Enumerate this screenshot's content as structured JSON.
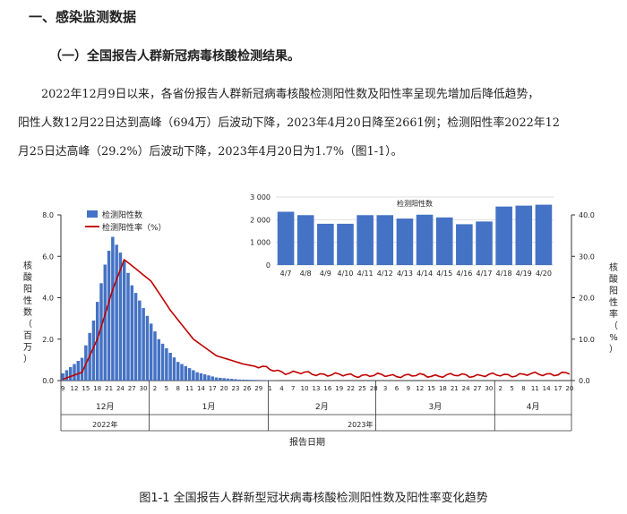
{
  "section": {
    "heading": "一、感染监测数据",
    "subheading": "（一）全国报告人群新冠病毒核酸检测结果。",
    "paragraph_lines": [
      "2022年12月9日以来，各省份报告人群新冠病毒核酸检测阳性数及阳性率呈现先增加后降低趋势，",
      "阳性人数12月22日达到高峰（694万）后波动下降，2023年4月20日降至2661例；检测阳性率2022年12",
      "月25日达高峰（29.2%）后波动下降，2023年4月20日为1.7%（图1-1）。"
    ]
  },
  "figure": {
    "caption": "图1-1   全国报告人群新型冠状病毒核酸检测阳性数及阳性率变化趋势",
    "legend": {
      "bar": "检测阳性数",
      "line": "检测阳性率（%）"
    },
    "left_axis_label": [
      "核",
      "酸",
      "阳",
      "性",
      "数",
      "（",
      "百",
      "万",
      "）"
    ],
    "right_axis_label": [
      "核",
      "酸",
      "阳",
      "性",
      "率",
      "（",
      "%",
      "）"
    ],
    "x_axis_title": "报告日期",
    "year_2022": "2022年",
    "year_2023": "2023年",
    "months": [
      "12月",
      "1月",
      "2月",
      "3月",
      "4月"
    ],
    "inset_title": "检测阳性数",
    "colors": {
      "bar": "#4472C4",
      "line": "#C00000"
    }
  },
  "chart_data": [
    {
      "type": "bar+line",
      "xlabel": "报告日期",
      "ylabel": "核酸阳性数（百万）",
      "y2label": "核酸阳性率（%）",
      "ylim": [
        0,
        8
      ],
      "y2lim": [
        0,
        40
      ],
      "yticks": [
        "0.0",
        "2.0",
        "4.0",
        "6.0",
        "8.0"
      ],
      "y2ticks": [
        "0.0",
        "10.0",
        "20.0",
        "30.0",
        "40.0"
      ],
      "x_start": "2022-12-09",
      "x_end": "2023-04-20",
      "x_tick_labels": [
        "9",
        "12",
        "15",
        "18",
        "21",
        "24",
        "27",
        "30",
        "2",
        "5",
        "8",
        "11",
        "14",
        "17",
        "20",
        "23",
        "26",
        "29",
        "1",
        "4",
        "7",
        "10",
        "13",
        "16",
        "19",
        "22",
        "25",
        "28",
        "3",
        "6",
        "9",
        "12",
        "15",
        "18",
        "21",
        "24",
        "27",
        "30",
        "2",
        "5",
        "8",
        "11",
        "14",
        "17",
        "20"
      ],
      "bar_key_points": [
        {
          "date": "2022-12-09",
          "value": 0.35
        },
        {
          "date": "2022-12-14",
          "value": 1.1
        },
        {
          "date": "2022-12-17",
          "value": 2.9
        },
        {
          "date": "2022-12-20",
          "value": 5.6
        },
        {
          "date": "2022-12-22",
          "value": 6.94
        },
        {
          "date": "2022-12-25",
          "value": 5.8
        },
        {
          "date": "2022-12-27",
          "value": 4.6
        },
        {
          "date": "2022-12-30",
          "value": 3.5
        },
        {
          "date": "2023-01-03",
          "value": 2.0
        },
        {
          "date": "2023-01-08",
          "value": 0.9
        },
        {
          "date": "2023-01-13",
          "value": 0.4
        },
        {
          "date": "2023-01-18",
          "value": 0.15
        },
        {
          "date": "2023-01-24",
          "value": 0.05
        },
        {
          "date": "2023-02-05",
          "value": 0.0
        },
        {
          "date": "2023-04-20",
          "value": 0.0
        }
      ],
      "line_key_points": [
        {
          "date": "2022-12-09",
          "value": 0.3
        },
        {
          "date": "2022-12-14",
          "value": 2.0
        },
        {
          "date": "2022-12-18",
          "value": 10.0
        },
        {
          "date": "2022-12-22",
          "value": 22.0
        },
        {
          "date": "2022-12-25",
          "value": 29.2
        },
        {
          "date": "2022-12-28",
          "value": 27.0
        },
        {
          "date": "2023-01-01",
          "value": 24.0
        },
        {
          "date": "2023-01-06",
          "value": 17.0
        },
        {
          "date": "2023-01-12",
          "value": 10.0
        },
        {
          "date": "2023-01-18",
          "value": 6.0
        },
        {
          "date": "2023-01-25",
          "value": 4.0
        },
        {
          "date": "2023-02-05",
          "value": 2.0
        },
        {
          "date": "2023-02-20",
          "value": 1.3
        },
        {
          "date": "2023-03-10",
          "value": 1.2
        },
        {
          "date": "2023-04-01",
          "value": 1.3
        },
        {
          "date": "2023-04-20",
          "value": 1.7
        }
      ]
    },
    {
      "type": "bar",
      "title": "检测阳性数",
      "categories": [
        "4/7",
        "4/8",
        "4/9",
        "4/10",
        "4/11",
        "4/12",
        "4/13",
        "4/14",
        "4/15",
        "4/16",
        "4/17",
        "4/18",
        "4/19",
        "4/20"
      ],
      "values": [
        2350,
        2200,
        1820,
        1820,
        2200,
        2200,
        2050,
        2220,
        2100,
        1800,
        1920,
        2580,
        2620,
        2661
      ],
      "yticks": [
        "0",
        "1 000",
        "2 000",
        "3 000"
      ],
      "ylim": [
        0,
        3000
      ]
    }
  ]
}
